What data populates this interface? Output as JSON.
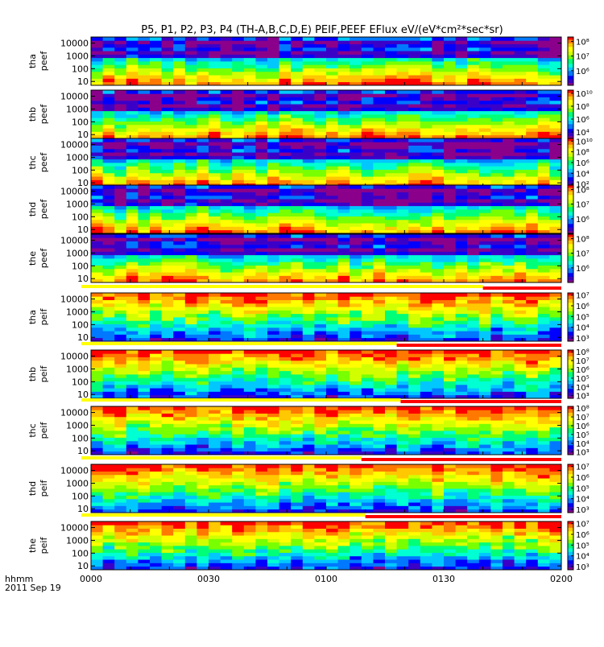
{
  "title": "P5, P1, P2, P3, P4 (TH-A,B,C,D,E) PEIF,PEEF EFlux eV/(eV*cm²*sec*sr)",
  "colormap": [
    "#8b008b",
    "#3b00c8",
    "#0000ff",
    "#0078ff",
    "#00c8ff",
    "#00ffd2",
    "#00ff78",
    "#78ff00",
    "#d2ff00",
    "#ffff00",
    "#ffc800",
    "#ff7800",
    "#ff0000"
  ],
  "chart_data": {
    "type": "heatmap",
    "x_axis": {
      "start": "0000",
      "end": "0200",
      "ticks": [
        "0000",
        "0030",
        "0100",
        "0130",
        "0200"
      ],
      "label_top": "hhmm",
      "label_bottom": "2011 Sep 19"
    },
    "y_axis": {
      "scale": "log",
      "range": [
        5,
        30000
      ],
      "ticks": [
        "10",
        "100",
        "1000",
        "10000"
      ],
      "unit": "eV"
    },
    "panels": [
      {
        "ylabel": [
          "tha",
          "peef"
        ],
        "cbar_ticks": [
          "10⁶",
          "10⁷",
          "10⁸"
        ],
        "cbar_range": [
          5,
          8.3
        ],
        "has_flag_bar": false
      },
      {
        "ylabel": [
          "thb",
          "peef"
        ],
        "cbar_ticks": [
          "10⁴",
          "10⁶",
          "10⁸",
          "10¹⁰"
        ],
        "cbar_range": [
          3,
          10.5
        ],
        "has_flag_bar": false
      },
      {
        "ylabel": [
          "thc",
          "peef"
        ],
        "cbar_ticks": [
          "10²",
          "10⁴",
          "10⁶",
          "10⁸",
          "10¹⁰"
        ],
        "cbar_range": [
          1.5,
          10.5
        ],
        "has_flag_bar": false
      },
      {
        "ylabel": [
          "thd",
          "peef"
        ],
        "cbar_ticks": [
          "10⁶",
          "10⁷",
          "10⁸"
        ],
        "cbar_range": [
          5,
          8.3
        ],
        "has_flag_bar": false
      },
      {
        "ylabel": [
          "the",
          "peef"
        ],
        "cbar_ticks": [
          "10⁶",
          "10⁷",
          "10⁸"
        ],
        "cbar_range": [
          5,
          8.3
        ],
        "has_flag_bar": false
      },
      {
        "ylabel": [
          "tha",
          "peif"
        ],
        "cbar_ticks": [
          "10³",
          "10⁴",
          "10⁵",
          "10⁶",
          "10⁷"
        ],
        "cbar_range": [
          2.7,
          7.2
        ],
        "has_flag_bar": true,
        "flag_split": "0140"
      },
      {
        "ylabel": [
          "thb",
          "peif"
        ],
        "cbar_ticks": [
          "10³",
          "10⁴",
          "10⁵",
          "10⁶",
          "10⁷",
          "10⁸"
        ],
        "cbar_range": [
          2.7,
          8.2
        ],
        "has_flag_bar": true,
        "flag_split": "0118"
      },
      {
        "ylabel": [
          "thc",
          "peif"
        ],
        "cbar_ticks": [
          "10³",
          "10⁴",
          "10⁵",
          "10⁶",
          "10⁷",
          "10⁸"
        ],
        "cbar_range": [
          2.7,
          8.2
        ],
        "has_flag_bar": true,
        "flag_split": "0119"
      },
      {
        "ylabel": [
          "thd",
          "peif"
        ],
        "cbar_ticks": [
          "10³",
          "10⁴",
          "10⁵",
          "10⁶",
          "10⁷"
        ],
        "cbar_range": [
          2.7,
          7.2
        ],
        "has_flag_bar": true,
        "flag_split": "0109"
      },
      {
        "ylabel": [
          "the",
          "peif"
        ],
        "cbar_ticks": [
          "10³",
          "10⁴",
          "10⁵",
          "10⁶",
          "10⁷"
        ],
        "cbar_range": [
          2.7,
          7.2
        ],
        "has_flag_bar": true,
        "flag_split": "0110"
      }
    ]
  }
}
